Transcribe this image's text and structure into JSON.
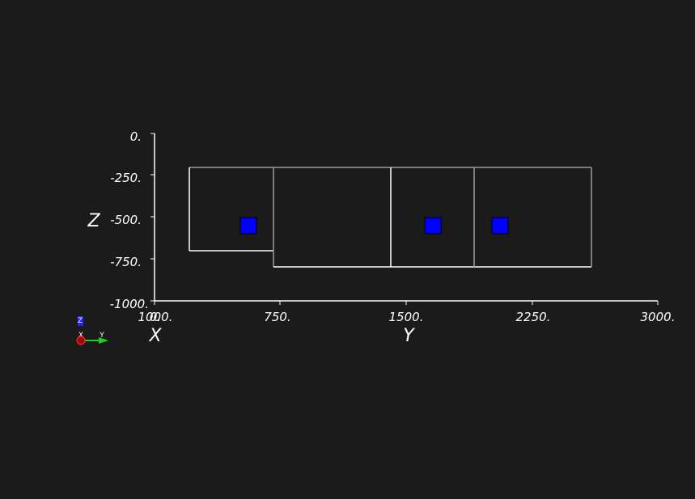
{
  "viewer": {
    "background": "#1b1b1b",
    "axis_color": "#ffffff",
    "outline_color_bright": "#ffffff",
    "outline_color_dim": "#9a9a9a",
    "marker_color": "#0000ff"
  },
  "axes": {
    "z_title": "Z",
    "x_title": "X",
    "y_title": "Y",
    "z_ticks": [
      "0.",
      "-250.",
      "-500.",
      "-750.",
      "-1000."
    ],
    "x_tick_overlap": "0.",
    "x_tick_overlap2": "1000.",
    "y_ticks": [
      "750.",
      "1500.",
      "2250.",
      "3000."
    ]
  },
  "orientation_widget": {
    "z_label": "Z",
    "x_label": "X",
    "y_label": "Y",
    "x_color": "#cc0000",
    "y_color": "#22cc22",
    "z_color": "#2222ff"
  },
  "chart_data": {
    "type": "scatter",
    "title": "",
    "xlabel": "Y",
    "ylabel": "Z",
    "xlim": [
      0,
      3000
    ],
    "ylim": [
      -1000,
      0
    ],
    "regions": [
      {
        "y_range": [
          210,
          710
        ],
        "z_range": [
          -700,
          -200
        ]
      },
      {
        "y_range": [
          710,
          1410
        ],
        "z_range": [
          -800,
          -200
        ]
      },
      {
        "y_range": [
          1410,
          1910
        ],
        "z_range": [
          -800,
          -200
        ]
      },
      {
        "y_range": [
          1910,
          2610
        ],
        "z_range": [
          -800,
          -200
        ]
      }
    ],
    "markers": [
      {
        "y": 560,
        "z": -550
      },
      {
        "y": 1660,
        "z": -550
      },
      {
        "y": 2060,
        "z": -550
      }
    ]
  }
}
